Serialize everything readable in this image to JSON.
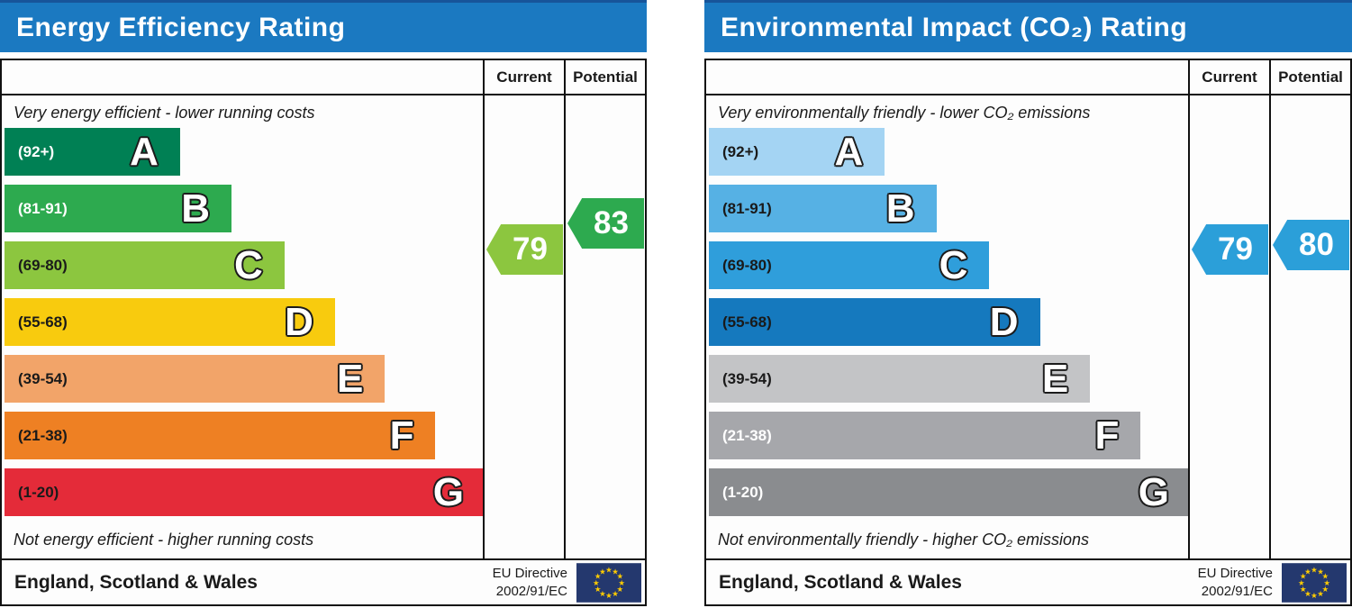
{
  "charts": [
    {
      "title": "Energy Efficiency Rating",
      "header_color": "#1B79C1",
      "columns": {
        "current": "Current",
        "potential": "Potential"
      },
      "top_caption": "Very energy efficient - lower running costs",
      "bottom_caption": "Not energy efficient - higher running costs",
      "bands": [
        {
          "letter": "A",
          "range_label": "(92+)",
          "lo": 92,
          "hi": 100,
          "color": "#008054",
          "label_color": "#FFFFFF",
          "width_pct": 36.5
        },
        {
          "letter": "B",
          "range_label": "(81-91)",
          "lo": 81,
          "hi": 91,
          "color": "#2DAA4F",
          "label_color": "#FFFFFF",
          "width_pct": 47.2
        },
        {
          "letter": "C",
          "range_label": "(69-80)",
          "lo": 69,
          "hi": 80,
          "color": "#8CC63F",
          "label_color": "#1a1a1a",
          "width_pct": 58.2
        },
        {
          "letter": "D",
          "range_label": "(55-68)",
          "lo": 55,
          "hi": 68,
          "color": "#F8CB0E",
          "label_color": "#1a1a1a",
          "width_pct": 68.7
        },
        {
          "letter": "E",
          "range_label": "(39-54)",
          "lo": 39,
          "hi": 54,
          "color": "#F2A469",
          "label_color": "#1a1a1a",
          "width_pct": 79.1
        },
        {
          "letter": "F",
          "range_label": "(21-38)",
          "lo": 21,
          "hi": 38,
          "color": "#EE8023",
          "label_color": "#1a1a1a",
          "width_pct": 89.6
        },
        {
          "letter": "G",
          "range_label": "(1-20)",
          "lo": 1,
          "hi": 20,
          "color": "#E42B39",
          "label_color": "#1a1a1a",
          "width_pct": 100
        }
      ],
      "current": {
        "label": "79",
        "value": 79,
        "color": "#8CC63F"
      },
      "potential": {
        "label": "83",
        "value": 83,
        "color": "#2DAA4F"
      },
      "footer": {
        "region": "England, Scotland & Wales",
        "directive_line1": "EU Directive",
        "directive_line2": "2002/91/EC"
      }
    },
    {
      "title": "Environmental Impact (CO₂) Rating",
      "header_color": "#1B79C1",
      "columns": {
        "current": "Current",
        "potential": "Potential"
      },
      "top_caption": "Very environmentally friendly - lower CO₂ emissions",
      "bottom_caption": "Not environmentally friendly - higher CO₂ emissions",
      "bands": [
        {
          "letter": "A",
          "range_label": "(92+)",
          "lo": 92,
          "hi": 100,
          "color": "#A4D4F3",
          "label_color": "#1a1a1a",
          "width_pct": 36.5
        },
        {
          "letter": "B",
          "range_label": "(81-91)",
          "lo": 81,
          "hi": 91,
          "color": "#56B1E4",
          "label_color": "#1a1a1a",
          "width_pct": 47.2
        },
        {
          "letter": "C",
          "range_label": "(69-80)",
          "lo": 69,
          "hi": 80,
          "color": "#2F9EDB",
          "label_color": "#1a1a1a",
          "width_pct": 58.2
        },
        {
          "letter": "D",
          "range_label": "(55-68)",
          "lo": 55,
          "hi": 68,
          "color": "#1579BE",
          "label_color": "#1a1a1a",
          "width_pct": 68.7
        },
        {
          "letter": "E",
          "range_label": "(39-54)",
          "lo": 39,
          "hi": 54,
          "color": "#C3C4C6",
          "label_color": "#1a1a1a",
          "width_pct": 79.1
        },
        {
          "letter": "F",
          "range_label": "(21-38)",
          "lo": 21,
          "hi": 38,
          "color": "#A6A7AB",
          "label_color": "#FFFFFF",
          "width_pct": 89.6
        },
        {
          "letter": "G",
          "range_label": "(1-20)",
          "lo": 1,
          "hi": 20,
          "color": "#8A8C8F",
          "label_color": "#FFFFFF",
          "width_pct": 100
        }
      ],
      "current": {
        "label": "79",
        "value": 79,
        "color": "#2B9FD9"
      },
      "potential": {
        "label": "80",
        "value": 80,
        "color": "#2B9FD9"
      },
      "footer": {
        "region": "England, Scotland & Wales",
        "directive_line1": "EU Directive",
        "directive_line2": "2002/91/EC"
      }
    }
  ],
  "flag": {
    "field": "#24386E",
    "stars": "#FFCC00"
  },
  "chart_data": [
    {
      "type": "bar",
      "title": "Energy Efficiency Rating",
      "categories": [
        "A",
        "B",
        "C",
        "D",
        "E",
        "F",
        "G"
      ],
      "band_ranges": [
        "92+",
        "81-91",
        "69-80",
        "55-68",
        "39-54",
        "21-38",
        "1-20"
      ],
      "band_colors": [
        "#008054",
        "#2DAA4F",
        "#8CC63F",
        "#F8CB0E",
        "#F2A469",
        "#EE8023",
        "#E42B39"
      ],
      "columns": [
        "Current",
        "Potential"
      ],
      "series": [
        {
          "name": "Current",
          "values": [
            79
          ]
        },
        {
          "name": "Potential",
          "values": [
            83
          ]
        }
      ],
      "current_rating": 79,
      "current_band": "C",
      "potential_rating": 83,
      "potential_band": "B",
      "top_caption": "Very energy efficient - lower running costs",
      "bottom_caption": "Not energy efficient - higher running costs",
      "region": "England, Scotland & Wales",
      "directive": "EU Directive 2002/91/EC"
    },
    {
      "type": "bar",
      "title": "Environmental Impact (CO₂) Rating",
      "categories": [
        "A",
        "B",
        "C",
        "D",
        "E",
        "F",
        "G"
      ],
      "band_ranges": [
        "92+",
        "81-91",
        "69-80",
        "55-68",
        "39-54",
        "21-38",
        "1-20"
      ],
      "band_colors": [
        "#A4D4F3",
        "#56B1E4",
        "#2F9EDB",
        "#1579BE",
        "#C3C4C6",
        "#A6A7AB",
        "#8A8C8F"
      ],
      "columns": [
        "Current",
        "Potential"
      ],
      "series": [
        {
          "name": "Current",
          "values": [
            79
          ]
        },
        {
          "name": "Potential",
          "values": [
            80
          ]
        }
      ],
      "current_rating": 79,
      "current_band": "C",
      "potential_rating": 80,
      "potential_band": "C",
      "top_caption": "Very environmentally friendly - lower CO₂ emissions",
      "bottom_caption": "Not environmentally friendly - higher CO₂ emissions",
      "region": "England, Scotland & Wales",
      "directive": "EU Directive 2002/91/EC"
    }
  ]
}
